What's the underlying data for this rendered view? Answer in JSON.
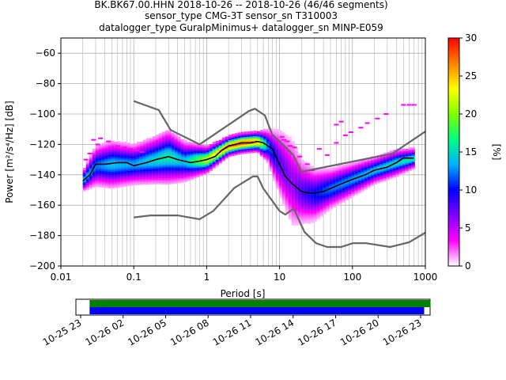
{
  "chart_data": {
    "type": "heatmap",
    "title_lines": [
      "BK.BK67.00.HHN   2018-10-26 -- 2018-10-26  (46/46 segments)",
      "sensor_type CMG-3T sensor_sn T310003",
      "datalogger_type GuralpMinimus+ datalogger_sn MINP-E059"
    ],
    "xlabel": "Period [s]",
    "ylabel": "Power [m²/s⁴/Hz] [dB]",
    "x_scale": "log",
    "xlim": [
      0.01,
      1000
    ],
    "ylim": [
      -200,
      -50
    ],
    "x_ticks": [
      {
        "value": 0.01,
        "label": "0.01"
      },
      {
        "value": 0.1,
        "label": "0.1"
      },
      {
        "value": 1,
        "label": "1"
      },
      {
        "value": 10,
        "label": "10"
      },
      {
        "value": 100,
        "label": "100"
      },
      {
        "value": 1000,
        "label": "1000"
      }
    ],
    "y_ticks": [
      {
        "value": -60,
        "label": "−60"
      },
      {
        "value": -80,
        "label": "−80"
      },
      {
        "value": -100,
        "label": "−100"
      },
      {
        "value": -120,
        "label": "−120"
      },
      {
        "value": -140,
        "label": "−140"
      },
      {
        "value": -160,
        "label": "−160"
      },
      {
        "value": -180,
        "label": "−180"
      },
      {
        "value": -200,
        "label": "−200"
      }
    ],
    "grid": true,
    "colorbar": {
      "label": "[%]",
      "range": [
        0,
        30
      ],
      "ticks": [
        {
          "value": 0,
          "label": "0"
        },
        {
          "value": 5,
          "label": "5"
        },
        {
          "value": 10,
          "label": "10"
        },
        {
          "value": 15,
          "label": "15"
        },
        {
          "value": 20,
          "label": "20"
        },
        {
          "value": 25,
          "label": "25"
        },
        {
          "value": 30,
          "label": "30"
        }
      ],
      "colors": [
        "#ffffff",
        "#ff00ff",
        "#8000ff",
        "#0000ff",
        "#00b0ff",
        "#00ff80",
        "#80ff00",
        "#ffff00",
        "#ff8000",
        "#ff0000"
      ]
    },
    "series": [
      {
        "role": "high-noise-model",
        "color": "#666666",
        "x": [
          0.1,
          0.22,
          0.32,
          0.8,
          3.8,
          4.6,
          6.3,
          7.9,
          10,
          15.4,
          20,
          354.8,
          1000
        ],
        "y": [
          -91.5,
          -97.4,
          -110.5,
          -120.0,
          -98.0,
          -96.5,
          -101.0,
          -113.5,
          -118.0,
          -127.0,
          -138.0,
          -126.0,
          -111.5
        ]
      },
      {
        "role": "low-noise-model",
        "color": "#666666",
        "x": [
          0.1,
          0.17,
          0.4,
          0.8,
          1.24,
          2.4,
          4.3,
          5.0,
          6.0,
          10.0,
          12.0,
          15.6,
          21.9,
          31.6,
          45.0,
          70.0,
          101.0,
          154.0,
          328.0,
          600.0,
          1000.0
        ],
        "y": [
          -168.0,
          -166.7,
          -166.7,
          -169.2,
          -163.7,
          -148.6,
          -141.1,
          -141.1,
          -149.0,
          -163.8,
          -166.2,
          -162.1,
          -177.5,
          -185.0,
          -187.5,
          -187.5,
          -185.0,
          -185.0,
          -187.5,
          -184.4,
          -178.0
        ]
      },
      {
        "role": "mode",
        "color": "#000000",
        "x": [
          0.02,
          0.025,
          0.03,
          0.04,
          0.06,
          0.08,
          0.1,
          0.15,
          0.2,
          0.3,
          0.4,
          0.6,
          0.8,
          1.0,
          1.3,
          1.6,
          2.0,
          2.5,
          3.0,
          4.0,
          5.0,
          6.0,
          8.0,
          10.0,
          12.0,
          15.0,
          20.0,
          25.0,
          30.0,
          40.0,
          50.0,
          70.0,
          100.0,
          150.0,
          200.0,
          300.0,
          400.0,
          500.0,
          700.0
        ],
        "y": [
          -144,
          -140,
          -133,
          -133,
          -132,
          -132,
          -134,
          -132,
          -130,
          -128,
          -130,
          -132,
          -131,
          -130,
          -128,
          -124,
          -121,
          -120,
          -119,
          -119,
          -118,
          -119,
          -123,
          -133,
          -141,
          -146,
          -151,
          -152,
          -152,
          -151,
          -149,
          -146,
          -143,
          -140,
          -137,
          -135,
          -132,
          -129,
          -129
        ]
      }
    ],
    "density": {
      "note": "probability density of PSD values, percent per bin",
      "x": [
        0.02,
        0.03,
        0.05,
        0.1,
        0.2,
        0.3,
        0.5,
        1,
        2,
        3,
        5,
        7,
        10,
        15,
        20,
        30,
        50,
        100,
        200,
        400,
        700
      ],
      "center_db": [
        -144,
        -134,
        -133,
        -133,
        -130,
        -128,
        -131,
        -130,
        -121,
        -119,
        -118,
        -121,
        -132,
        -145,
        -151,
        -153,
        -149,
        -143,
        -137,
        -132,
        -129
      ],
      "spread_db": [
        3,
        6,
        7,
        6,
        7,
        8,
        6,
        4,
        3,
        3,
        3,
        5,
        10,
        14,
        10,
        8,
        6,
        5,
        4,
        4,
        3
      ],
      "peak_percent": [
        14,
        12,
        14,
        13,
        15,
        16,
        14,
        22,
        27,
        28,
        26,
        12,
        8,
        6,
        8,
        10,
        12,
        13,
        14,
        15,
        16
      ]
    },
    "outliers": [
      {
        "x": 0.028,
        "y": -117
      },
      {
        "x": 0.032,
        "y": -120
      },
      {
        "x": 0.035,
        "y": -116
      },
      {
        "x": 0.045,
        "y": -118
      },
      {
        "x": 0.06,
        "y": -121
      },
      {
        "x": 0.075,
        "y": -122
      },
      {
        "x": 0.09,
        "y": -123
      },
      {
        "x": 0.11,
        "y": -124
      },
      {
        "x": 0.13,
        "y": -125
      },
      {
        "x": 0.025,
        "y": -126
      },
      {
        "x": 0.022,
        "y": -130
      },
      {
        "x": 10.8,
        "y": -115
      },
      {
        "x": 11.5,
        "y": -117
      },
      {
        "x": 12.8,
        "y": -118
      },
      {
        "x": 14.0,
        "y": -121
      },
      {
        "x": 16.0,
        "y": -122
      },
      {
        "x": 19.0,
        "y": -128
      },
      {
        "x": 24.0,
        "y": -133
      },
      {
        "x": 28.0,
        "y": -137
      },
      {
        "x": 35.0,
        "y": -123
      },
      {
        "x": 45.0,
        "y": -127
      },
      {
        "x": 60.0,
        "y": -119
      },
      {
        "x": 80.0,
        "y": -114
      },
      {
        "x": 95.0,
        "y": -112
      },
      {
        "x": 130.0,
        "y": -109
      },
      {
        "x": 160.0,
        "y": -106
      },
      {
        "x": 220.0,
        "y": -103
      },
      {
        "x": 290.0,
        "y": -100
      },
      {
        "x": 500.0,
        "y": -94
      },
      {
        "x": 600.0,
        "y": -94
      },
      {
        "x": 700.0,
        "y": -94
      },
      {
        "x": 60.0,
        "y": -107
      },
      {
        "x": 70.0,
        "y": -105
      }
    ],
    "time_axis": {
      "tick_labels": [
        "10-25 23",
        "10-26 02",
        "10-26 05",
        "10-26 08",
        "10-26 11",
        "10-26 14",
        "10-26 17",
        "10-26 20",
        "10-26 23"
      ],
      "range": [
        "10-25 23",
        "10-26 23"
      ],
      "segments": [
        {
          "label": "data coverage",
          "color": "#008000",
          "start": "10-25 23:38",
          "end": "10-26 23:42"
        },
        {
          "label": "processed segments",
          "color": "#0000ff",
          "start": "10-25 23:38",
          "end": "10-26 23:15"
        }
      ]
    }
  }
}
